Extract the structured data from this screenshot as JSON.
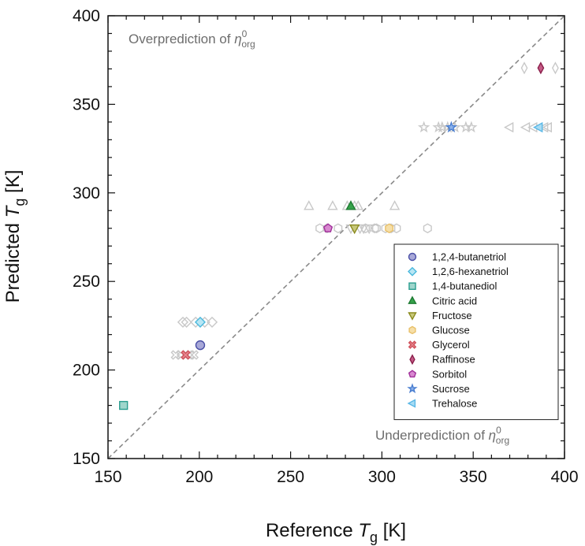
{
  "chart_data": {
    "type": "scatter",
    "title": "",
    "xlabel": {
      "main": "Reference ",
      "var": "T",
      "sub": "g",
      "unit": " [K]"
    },
    "ylabel": {
      "main": "Predicted ",
      "var": "T",
      "sub": "g",
      "unit": " [K]"
    },
    "xlim": [
      150,
      400
    ],
    "ylim": [
      150,
      400
    ],
    "xticks": [
      150,
      200,
      250,
      300,
      350,
      400
    ],
    "yticks": [
      150,
      200,
      250,
      300,
      350,
      400
    ],
    "grid": false,
    "legend_position": "lower-right",
    "reference_line": {
      "from": [
        150,
        150
      ],
      "to": [
        400,
        400
      ],
      "style": "dashed",
      "color": "#8a8a8a"
    },
    "annotations": {
      "over": {
        "text": "Overprediction of ",
        "sym": "η",
        "sup": "0",
        "sub": "org"
      },
      "under": {
        "text": "Underprediction of ",
        "sym": "η",
        "sup": "0",
        "sub": "org"
      }
    },
    "reference_color": "#c8c8c8",
    "series": [
      {
        "name": "1,2,4-butanetriol",
        "marker": "circle",
        "color": "#4a4fa6",
        "fill": "#a8a8d8",
        "x": [
          200.5
        ],
        "y": [
          214
        ],
        "ref_x": []
      },
      {
        "name": "1,2,6-hexanetriol",
        "marker": "diamond",
        "color": "#4ab8dc",
        "fill": "#b8e6f4",
        "x": [
          200.5
        ],
        "y": [
          227
        ],
        "ref_x": [
          191,
          193,
          198,
          203,
          207
        ]
      },
      {
        "name": "1,4-butanediol",
        "marker": "square",
        "color": "#2a9d8f",
        "fill": "#9fd6cc",
        "x": [
          158.5
        ],
        "y": [
          180
        ],
        "ref_x": []
      },
      {
        "name": "Citric acid",
        "marker": "triangle-up",
        "color": "#1e7a32",
        "fill": "#35a24a",
        "x": [
          283
        ],
        "y": [
          292.5
        ],
        "ref_x": [
          260,
          273,
          281,
          285,
          287,
          307
        ]
      },
      {
        "name": "Fructose",
        "marker": "triangle-down",
        "color": "#8a8a1e",
        "fill": "#c8c87a",
        "x": [
          285
        ],
        "y": [
          280
        ],
        "ref_x": [
          283,
          288,
          290,
          293
        ]
      },
      {
        "name": "Glucose",
        "marker": "hexagon",
        "color": "#e8c06a",
        "fill": "#f6dfa8",
        "x": [
          304
        ],
        "y": [
          280
        ],
        "ref_x": [
          266,
          270,
          276,
          291,
          296,
          297,
          302,
          305,
          308,
          325
        ]
      },
      {
        "name": "Glycerol",
        "marker": "x",
        "color": "#d0505a",
        "fill": "#e68a92",
        "x": [
          192.5
        ],
        "y": [
          208.5
        ],
        "ref_x": [
          187,
          190,
          195,
          197
        ]
      },
      {
        "name": "Raffinose",
        "marker": "diamond-thin",
        "color": "#8a1e4a",
        "fill": "#c45a86",
        "x": [
          387
        ],
        "y": [
          370.5
        ],
        "ref_x": [
          378,
          395
        ]
      },
      {
        "name": "Sorbitol",
        "marker": "pentagon",
        "color": "#a0309a",
        "fill": "#d888d0",
        "x": [
          270.5
        ],
        "y": [
          280
        ],
        "ref_x": []
      },
      {
        "name": "Sucrose",
        "marker": "star",
        "color": "#4a7ed0",
        "fill": "#8eb4ec",
        "x": [
          338
        ],
        "y": [
          337
        ],
        "ref_x": [
          323,
          331,
          333,
          336,
          340,
          346,
          349
        ]
      },
      {
        "name": "Trehalose",
        "marker": "triangle-left",
        "color": "#5ab8e6",
        "fill": "#a8dcf4",
        "x": [
          386
        ],
        "y": [
          337
        ],
        "ref_x": [
          370,
          379,
          383,
          389,
          391
        ]
      }
    ]
  }
}
